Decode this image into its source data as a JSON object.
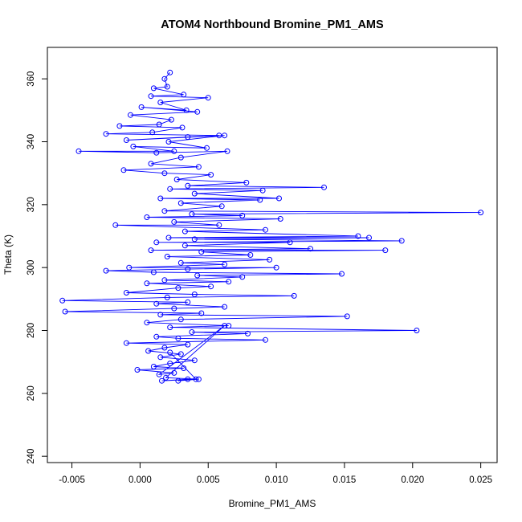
{
  "chart_data": {
    "type": "scatter",
    "title": "ATOM4 Northbound Bromine_PM1_AMS",
    "xlabel": "Bromine_PM1_AMS",
    "ylabel": "Theta (K)",
    "xlim": [
      -0.0068,
      0.0262
    ],
    "ylim": [
      238,
      370
    ],
    "x_ticks": [
      -0.005,
      0.0,
      0.005,
      0.01,
      0.015,
      0.02,
      0.025
    ],
    "x_tick_labels": [
      "-0.005",
      "0.000",
      "0.005",
      "0.010",
      "0.015",
      "0.020",
      "0.025"
    ],
    "y_ticks": [
      240,
      260,
      280,
      300,
      320,
      340,
      360
    ],
    "y_tick_labels": [
      "240",
      "260",
      "280",
      "300",
      "320",
      "340",
      "360"
    ],
    "grid": false,
    "color": "#0000ff",
    "markers": "open-circle",
    "connected": true,
    "series": [
      {
        "points": [
          [
            0.0022,
            362.0
          ],
          [
            0.0018,
            360.0
          ],
          [
            0.002,
            357.5
          ],
          [
            0.001,
            357.0
          ],
          [
            0.0032,
            355.0
          ],
          [
            0.0008,
            354.5
          ],
          [
            0.005,
            354.0
          ],
          [
            0.0015,
            352.5
          ],
          [
            0.0034,
            350.0
          ],
          [
            0.0001,
            351.0
          ],
          [
            0.0042,
            349.5
          ],
          [
            -0.0007,
            348.5
          ],
          [
            0.0023,
            347.0
          ],
          [
            0.0014,
            345.5
          ],
          [
            -0.0015,
            345.0
          ],
          [
            0.0031,
            344.5
          ],
          [
            0.0009,
            343.0
          ],
          [
            -0.0025,
            342.5
          ],
          [
            0.0058,
            342.0
          ],
          [
            0.0035,
            341.5
          ],
          [
            -0.001,
            340.5
          ],
          [
            0.0062,
            342.0
          ],
          [
            0.0021,
            340.0
          ],
          [
            0.0049,
            338.0
          ],
          [
            -0.0005,
            338.5
          ],
          [
            0.0025,
            337.0
          ],
          [
            -0.0045,
            337.0
          ],
          [
            0.0012,
            336.5
          ],
          [
            0.0064,
            337.0
          ],
          [
            0.003,
            335.0
          ],
          [
            0.0008,
            333.0
          ],
          [
            0.0043,
            332.0
          ],
          [
            -0.0012,
            331.0
          ],
          [
            0.0018,
            330.0
          ],
          [
            0.0052,
            329.5
          ],
          [
            0.0027,
            328.0
          ],
          [
            0.0078,
            327.0
          ],
          [
            0.0035,
            326.0
          ],
          [
            0.0135,
            325.5
          ],
          [
            0.0022,
            325.0
          ],
          [
            0.009,
            324.5
          ],
          [
            0.004,
            323.5
          ],
          [
            0.0102,
            322.0
          ],
          [
            0.0015,
            322.0
          ],
          [
            0.0088,
            321.5
          ],
          [
            0.003,
            320.5
          ],
          [
            0.006,
            319.5
          ],
          [
            0.0018,
            318.0
          ],
          [
            0.025,
            317.5
          ],
          [
            0.0038,
            317.0
          ],
          [
            0.0075,
            316.5
          ],
          [
            0.0005,
            316.0
          ],
          [
            0.0103,
            315.5
          ],
          [
            0.0025,
            314.5
          ],
          [
            0.0058,
            313.5
          ],
          [
            -0.0018,
            313.5
          ],
          [
            0.0092,
            312.0
          ],
          [
            0.0033,
            311.5
          ],
          [
            0.016,
            310.0
          ],
          [
            0.0021,
            309.5
          ],
          [
            0.0168,
            309.5
          ],
          [
            0.004,
            309.0
          ],
          [
            0.0192,
            308.5
          ],
          [
            0.0012,
            308.0
          ],
          [
            0.011,
            308.0
          ],
          [
            0.0033,
            307.0
          ],
          [
            0.0125,
            306.0
          ],
          [
            0.0008,
            305.5
          ],
          [
            0.018,
            305.5
          ],
          [
            0.0045,
            305.0
          ],
          [
            0.0081,
            304.0
          ],
          [
            0.002,
            303.5
          ],
          [
            0.0095,
            302.5
          ],
          [
            0.003,
            301.5
          ],
          [
            0.0062,
            301.0
          ],
          [
            -0.0008,
            300.0
          ],
          [
            0.01,
            300.0
          ],
          [
            0.0035,
            299.5
          ],
          [
            -0.0025,
            299.0
          ],
          [
            0.001,
            298.5
          ],
          [
            0.0148,
            298.0
          ],
          [
            0.0042,
            297.5
          ],
          [
            0.0075,
            297.0
          ],
          [
            0.0018,
            296.0
          ],
          [
            0.0065,
            295.5
          ],
          [
            0.0005,
            295.0
          ],
          [
            0.0052,
            294.0
          ],
          [
            0.0028,
            293.5
          ],
          [
            -0.001,
            292.0
          ],
          [
            0.004,
            291.5
          ],
          [
            0.0113,
            291.0
          ],
          [
            0.002,
            290.5
          ],
          [
            -0.0057,
            289.5
          ],
          [
            0.0035,
            289.0
          ],
          [
            0.0012,
            288.5
          ],
          [
            0.0062,
            287.5
          ],
          [
            0.0025,
            287.0
          ],
          [
            -0.0055,
            286.0
          ],
          [
            0.0045,
            285.5
          ],
          [
            0.0015,
            285.0
          ],
          [
            0.0152,
            284.5
          ],
          [
            0.003,
            283.5
          ],
          [
            0.0005,
            282.5
          ],
          [
            0.0065,
            281.5
          ],
          [
            0.0022,
            281.0
          ],
          [
            0.0203,
            280.0
          ],
          [
            0.0038,
            279.5
          ],
          [
            0.0079,
            279.0
          ],
          [
            0.0012,
            278.0
          ],
          [
            0.0028,
            277.5
          ],
          [
            0.0092,
            277.0
          ],
          [
            -0.001,
            276.0
          ],
          [
            0.0035,
            275.5
          ],
          [
            0.0018,
            274.5
          ],
          [
            0.0006,
            273.5
          ],
          [
            0.003,
            272.5
          ],
          [
            0.0015,
            271.5
          ],
          [
            0.004,
            270.5
          ],
          [
            0.0022,
            269.5
          ],
          [
            0.001,
            268.5
          ],
          [
            0.0032,
            268.0
          ],
          [
            -0.0002,
            267.5
          ],
          [
            0.0025,
            266.5
          ],
          [
            0.0014,
            266.0
          ],
          [
            0.0062,
            281.5
          ],
          [
            0.0019,
            265.0
          ],
          [
            0.0043,
            264.5
          ],
          [
            0.0028,
            264.0
          ],
          [
            0.0035,
            264.5
          ],
          [
            0.0016,
            264.0
          ],
          [
            0.0041,
            264.5
          ],
          [
            0.0022,
            273.0
          ]
        ]
      }
    ]
  }
}
